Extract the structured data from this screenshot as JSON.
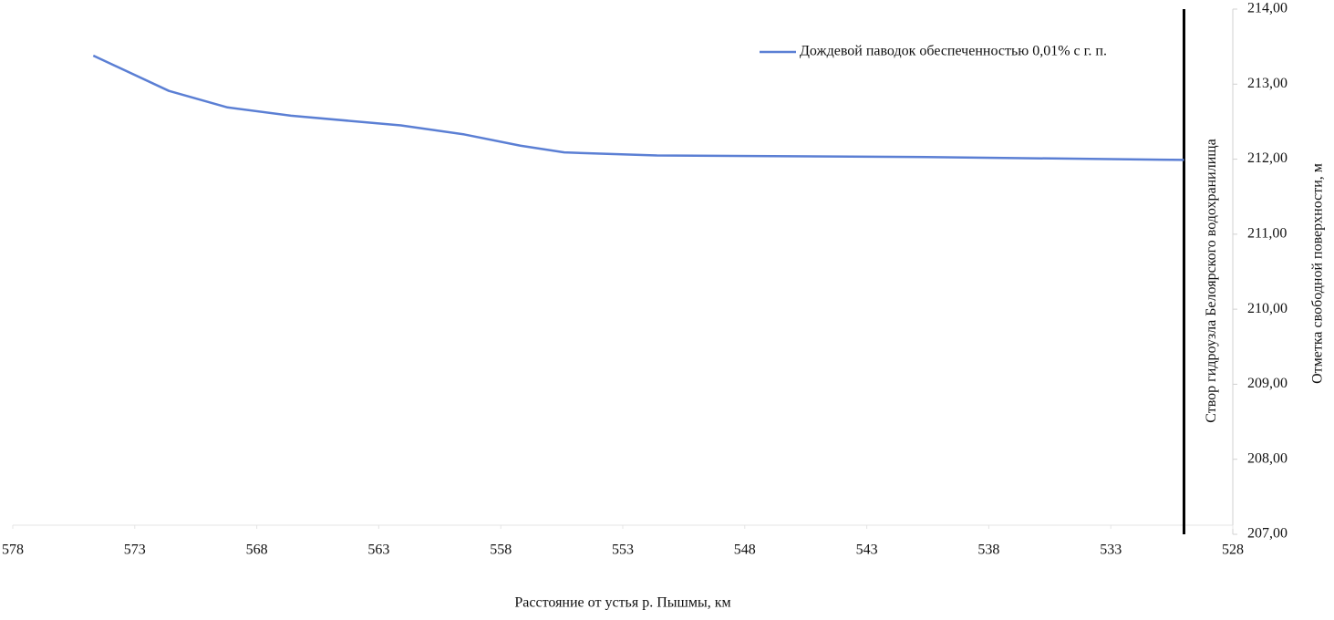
{
  "chart_data": {
    "type": "line",
    "x_label": "Расстояние от устья р. Пышмы, км",
    "y_label": "Отметка свободной поверхности, м",
    "xlim": [
      578,
      528
    ],
    "xticks": [
      578,
      573,
      568,
      563,
      558,
      553,
      548,
      543,
      538,
      533,
      528
    ],
    "ylim": [
      207,
      214
    ],
    "yticks": [
      {
        "value": 207,
        "label": "207,00"
      },
      {
        "value": 208,
        "label": "208,00"
      },
      {
        "value": 209,
        "label": "209,00"
      },
      {
        "value": 210,
        "label": "210,00"
      },
      {
        "value": 211,
        "label": "211,00"
      },
      {
        "value": 212,
        "label": "212,00"
      },
      {
        "value": 213,
        "label": "213,00"
      },
      {
        "value": 214,
        "label": "214,00"
      }
    ],
    "y_axis_side": "right",
    "legend": "top-right",
    "series": [
      {
        "name": "Дождевой паводок обеспеченностью 0,01% с г. п.",
        "color": "#5b7fd4",
        "x": [
          574.7,
          571.6,
          569.2,
          566.6,
          562.1,
          559.5,
          557.2,
          555.4,
          551.6,
          541.2,
          530.0
        ],
        "values": [
          213.38,
          212.91,
          212.69,
          212.58,
          212.45,
          212.33,
          212.18,
          212.09,
          212.05,
          212.03,
          211.99
        ]
      }
    ],
    "annotations": [
      {
        "x": 530,
        "label": "Створ гидроузла Белоярского водохранилища"
      }
    ]
  }
}
